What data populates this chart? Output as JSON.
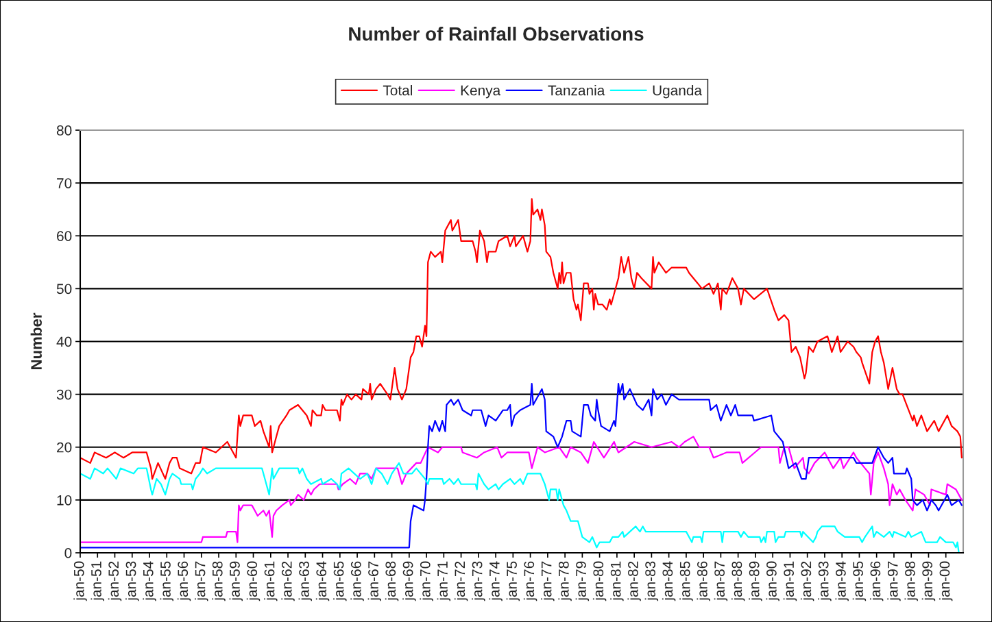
{
  "chart_data": {
    "type": "line",
    "title": "Number of Rainfall Observations",
    "ylabel": "Number",
    "xlim": [
      "1950-01",
      "2001-01"
    ],
    "ylim": [
      0,
      80
    ],
    "yticks": [
      0,
      10,
      20,
      30,
      40,
      50,
      60,
      70,
      80
    ],
    "xticks": [
      {
        "value": "1950-01",
        "label": "jan-50"
      },
      {
        "value": "1951-01",
        "label": "jan-51"
      },
      {
        "value": "1952-01",
        "label": "jan-52"
      },
      {
        "value": "1953-01",
        "label": "jan-53"
      },
      {
        "value": "1954-01",
        "label": "jan-54"
      },
      {
        "value": "1955-01",
        "label": "jan-55"
      },
      {
        "value": "1956-01",
        "label": "jan-56"
      },
      {
        "value": "1957-01",
        "label": "jan-57"
      },
      {
        "value": "1958-01",
        "label": "jan-58"
      },
      {
        "value": "1959-01",
        "label": "jan-59"
      },
      {
        "value": "1960-01",
        "label": "jan-60"
      },
      {
        "value": "1961-01",
        "label": "jan-61"
      },
      {
        "value": "1962-01",
        "label": "jan-62"
      },
      {
        "value": "1963-01",
        "label": "jan-63"
      },
      {
        "value": "1964-01",
        "label": "jan-64"
      },
      {
        "value": "1965-01",
        "label": "jan-65"
      },
      {
        "value": "1966-01",
        "label": "jan-66"
      },
      {
        "value": "1967-01",
        "label": "jan-67"
      },
      {
        "value": "1968-01",
        "label": "jan-68"
      },
      {
        "value": "1969-01",
        "label": "jan-69"
      },
      {
        "value": "1970-01",
        "label": "jan-70"
      },
      {
        "value": "1971-01",
        "label": "jan-71"
      },
      {
        "value": "1972-01",
        "label": "jan-72"
      },
      {
        "value": "1973-01",
        "label": "jan-73"
      },
      {
        "value": "1974-01",
        "label": "jan-74"
      },
      {
        "value": "1975-01",
        "label": "jan-75"
      },
      {
        "value": "1976-01",
        "label": "jan-76"
      },
      {
        "value": "1977-01",
        "label": "jan-77"
      },
      {
        "value": "1978-01",
        "label": "jan-78"
      },
      {
        "value": "1979-01",
        "label": "jan-79"
      },
      {
        "value": "1980-01",
        "label": "jan-80"
      },
      {
        "value": "1981-01",
        "label": "jan-81"
      },
      {
        "value": "1982-01",
        "label": "jan-82"
      },
      {
        "value": "1983-01",
        "label": "jan-83"
      },
      {
        "value": "1984-01",
        "label": "jan-84"
      },
      {
        "value": "1985-01",
        "label": "jan-85"
      },
      {
        "value": "1986-01",
        "label": "jan-86"
      },
      {
        "value": "1987-01",
        "label": "jan-87"
      },
      {
        "value": "1988-01",
        "label": "jan-88"
      },
      {
        "value": "1989-01",
        "label": "jan-89"
      },
      {
        "value": "1990-01",
        "label": "jan-90"
      },
      {
        "value": "1991-01",
        "label": "jan-91"
      },
      {
        "value": "1992-01",
        "label": "jan-92"
      },
      {
        "value": "1993-01",
        "label": "jan-93"
      },
      {
        "value": "1994-01",
        "label": "jan-94"
      },
      {
        "value": "1995-01",
        "label": "jan-95"
      },
      {
        "value": "1996-01",
        "label": "jan-96"
      },
      {
        "value": "1997-01",
        "label": "jan-97"
      },
      {
        "value": "1998-01",
        "label": "jan-98"
      },
      {
        "value": "1999-01",
        "label": "jan-99"
      },
      {
        "value": "2000-01",
        "label": "jan-00"
      }
    ],
    "grid": "y",
    "legend": "top",
    "series": [
      {
        "name": "Total",
        "color": "#ff0000",
        "x": [
          "1950-01",
          "1950-08",
          "1950-11",
          "1951-07",
          "1952-01",
          "1952-07",
          "1953-01",
          "1953-11",
          "1954-02",
          "1954-03",
          "1954-07",
          "1954-12",
          "1955-03",
          "1955-05",
          "1955-08",
          "1955-10",
          "1956-06",
          "1956-09",
          "1956-12",
          "1957-02",
          "1957-11",
          "1958-07",
          "1959-01",
          "1959-03",
          "1959-04",
          "1959-06",
          "1959-12",
          "1960-02",
          "1960-06",
          "1960-08",
          "1960-12",
          "1961-01",
          "1961-02",
          "1961-05",
          "1961-07",
          "1961-12",
          "1962-02",
          "1962-08",
          "1962-11",
          "1963-02",
          "1963-05",
          "1963-06",
          "1963-09",
          "1963-12",
          "1964-01",
          "1964-03",
          "1964-11",
          "1965-01",
          "1965-02",
          "1965-03",
          "1965-06",
          "1965-09",
          "1965-12",
          "1966-04",
          "1966-05",
          "1966-09",
          "1966-10",
          "1966-11",
          "1967-02",
          "1967-05",
          "1967-10",
          "1967-12",
          "1968-03",
          "1968-05",
          "1968-08",
          "1968-11",
          "1969-02",
          "1969-04",
          "1969-06",
          "1969-08",
          "1969-10",
          "1969-12",
          "1970-01",
          "1970-02",
          "1970-04",
          "1970-07",
          "1970-11",
          "1970-12",
          "1971-02",
          "1971-06",
          "1971-07",
          "1971-11",
          "1972-01",
          "1972-09",
          "1972-11",
          "1972-12",
          "1973-02",
          "1973-05",
          "1973-07",
          "1973-08",
          "1974-01",
          "1974-03",
          "1974-09",
          "1974-11",
          "1975-02",
          "1975-03",
          "1975-08",
          "1975-11",
          "1976-01",
          "1976-02",
          "1976-03",
          "1976-06",
          "1976-08",
          "1976-09",
          "1976-11",
          "1976-12",
          "1977-03",
          "1977-05",
          "1977-08",
          "1977-09",
          "1977-10",
          "1977-11",
          "1977-12",
          "1978-02",
          "1978-05",
          "1978-07",
          "1978-09",
          "1978-10",
          "1978-12",
          "1979-02",
          "1979-05",
          "1979-06",
          "1979-08",
          "1979-09",
          "1979-10",
          "1979-12",
          "1980-03",
          "1980-06",
          "1980-08",
          "1980-09",
          "1981-02",
          "1981-04",
          "1981-06",
          "1981-09",
          "1981-11",
          "1982-01",
          "1982-03",
          "1982-06",
          "1983-01",
          "1983-02",
          "1983-03",
          "1983-06",
          "1983-11",
          "1984-03",
          "1985-01",
          "1985-03",
          "1985-06",
          "1985-12",
          "1986-05",
          "1986-08",
          "1986-11",
          "1987-01",
          "1987-02",
          "1987-05",
          "1987-09",
          "1988-01",
          "1988-03",
          "1988-05",
          "1988-12",
          "1989-09",
          "1990-02",
          "1990-05",
          "1990-09",
          "1990-12",
          "1991-02",
          "1991-05",
          "1991-08",
          "1991-11",
          "1991-12",
          "1992-02",
          "1992-05",
          "1992-08",
          "1993-03",
          "1993-06",
          "1993-10",
          "1993-12",
          "1994-05",
          "1994-09",
          "1994-11",
          "1995-02",
          "1995-03",
          "1995-08",
          "1995-10",
          "1995-12",
          "1996-02",
          "1996-04",
          "1996-06",
          "1996-09",
          "1996-12",
          "1997-03",
          "1997-05",
          "1997-07",
          "1998-02",
          "1998-03",
          "1998-05",
          "1998-08",
          "1998-12",
          "1999-05",
          "1999-08",
          "2000-02",
          "2000-05",
          "2000-09",
          "2000-11",
          "2000-12"
        ],
        "values": [
          18,
          17,
          19,
          18,
          19,
          18,
          19,
          19,
          16,
          14,
          17,
          14,
          17,
          18,
          18,
          16,
          15,
          17,
          17,
          20,
          19,
          21,
          18,
          26,
          24,
          26,
          26,
          24,
          25,
          23,
          20,
          24,
          19,
          22,
          24,
          26,
          27,
          28,
          27,
          26,
          24,
          27,
          26,
          26,
          28,
          27,
          27,
          25,
          29,
          28,
          30,
          29,
          30,
          29,
          31,
          30,
          32,
          29,
          31,
          32,
          30,
          29,
          35,
          31,
          29,
          31,
          37,
          38,
          41,
          41,
          39,
          43,
          41,
          55,
          57,
          56,
          57,
          55,
          61,
          63,
          61,
          63,
          59,
          59,
          57,
          55,
          61,
          59,
          55,
          57,
          57,
          59,
          60,
          58,
          60,
          58,
          60,
          57,
          59,
          67,
          64,
          65,
          63,
          65,
          62,
          57,
          56,
          53,
          50,
          53,
          51,
          55,
          51,
          53,
          53,
          48,
          46,
          47,
          44,
          51,
          51,
          49,
          50,
          46,
          49,
          47,
          47,
          46,
          48,
          47,
          52,
          56,
          53,
          56,
          52,
          50,
          53,
          52,
          50,
          56,
          53,
          55,
          53,
          54,
          54,
          53,
          52,
          50,
          51,
          49,
          51,
          46,
          50,
          49,
          52,
          50,
          47,
          50,
          48,
          50,
          46,
          44,
          45,
          44,
          38,
          39,
          37,
          33,
          34,
          39,
          38,
          40,
          41,
          38,
          41,
          38,
          40,
          39,
          38,
          37,
          36,
          32,
          38,
          40,
          41,
          38,
          36,
          31,
          35,
          31,
          30,
          30,
          25,
          26,
          24,
          26,
          23,
          25,
          23,
          26,
          24,
          23,
          22,
          18
        ]
      },
      {
        "name": "Kenya",
        "color": "#ff00ff",
        "x": [
          "1950-01",
          "1957-01",
          "1957-02",
          "1958-06",
          "1958-07",
          "1959-01",
          "1959-02",
          "1959-03",
          "1959-04",
          "1959-06",
          "1959-12",
          "1960-02",
          "1960-04",
          "1960-08",
          "1960-10",
          "1960-12",
          "1961-02",
          "1961-03",
          "1961-05",
          "1961-09",
          "1962-02",
          "1962-03",
          "1962-06",
          "1962-08",
          "1962-12",
          "1963-03",
          "1963-05",
          "1963-07",
          "1963-11",
          "1964-11",
          "1964-12",
          "1965-03",
          "1965-08",
          "1965-12",
          "1966-03",
          "1966-08",
          "1966-11",
          "1967-02",
          "1968-05",
          "1968-08",
          "1968-11",
          "1969-06",
          "1969-09",
          "1970-02",
          "1970-09",
          "1970-12",
          "1972-01",
          "1972-02",
          "1972-12",
          "1973-05",
          "1974-02",
          "1974-05",
          "1974-09",
          "1975-12",
          "1976-02",
          "1976-06",
          "1976-11",
          "1977-09",
          "1978-02",
          "1978-05",
          "1978-12",
          "1979-05",
          "1979-09",
          "1980-04",
          "1980-11",
          "1981-02",
          "1982-01",
          "1983-01",
          "1984-03",
          "1984-08",
          "1984-12",
          "1985-06",
          "1985-10",
          "1986-05",
          "1986-08",
          "1987-05",
          "1988-02",
          "1988-04",
          "1989-05",
          "1990-05",
          "1990-06",
          "1990-09",
          "1990-12",
          "1991-04",
          "1991-10",
          "1991-11",
          "1992-02",
          "1992-06",
          "1993-01",
          "1993-07",
          "1993-12",
          "1994-02",
          "1994-09",
          "1994-11",
          "1995-05",
          "1995-08",
          "1995-09",
          "1995-11",
          "1996-02",
          "1996-06",
          "1996-09",
          "1996-10",
          "1996-12",
          "1997-03",
          "1997-05",
          "1997-09",
          "1998-02",
          "1998-04",
          "1998-10",
          "1999-02",
          "1999-03",
          "2000-01",
          "2000-02",
          "2000-08",
          "2000-12"
        ],
        "values": [
          2,
          2,
          3,
          3,
          4,
          4,
          2,
          9,
          8,
          9,
          9,
          8,
          7,
          8,
          7,
          8,
          3,
          7,
          8,
          9,
          10,
          9,
          10,
          11,
          10,
          12,
          11,
          12,
          13,
          13,
          12,
          13,
          14,
          13,
          15,
          15,
          14,
          16,
          16,
          13,
          15,
          17,
          17,
          20,
          19,
          20,
          20,
          19,
          18,
          19,
          20,
          18,
          19,
          19,
          16,
          20,
          19,
          20,
          18,
          20,
          19,
          17,
          21,
          18,
          21,
          19,
          21,
          20,
          21,
          20,
          21,
          22,
          20,
          20,
          18,
          19,
          19,
          17,
          20,
          20,
          17,
          20,
          20,
          16,
          18,
          16,
          15,
          17,
          19,
          16,
          18,
          16,
          19,
          18,
          16,
          15,
          11,
          17,
          19,
          16,
          13,
          9,
          13,
          11,
          12,
          10,
          8,
          12,
          11,
          9,
          12,
          11,
          13,
          12,
          10
        ]
      },
      {
        "name": "Tanzania",
        "color": "#0000ff",
        "x": [
          "1950-01",
          "1969-01",
          "1969-02",
          "1969-04",
          "1969-11",
          "1969-12",
          "1970-01",
          "1970-02",
          "1970-03",
          "1970-05",
          "1970-07",
          "1970-10",
          "1970-12",
          "1971-02",
          "1971-03",
          "1971-06",
          "1971-08",
          "1971-11",
          "1972-02",
          "1972-08",
          "1972-09",
          "1973-03",
          "1973-06",
          "1973-08",
          "1974-01",
          "1974-06",
          "1974-09",
          "1974-11",
          "1974-12",
          "1975-02",
          "1975-06",
          "1976-01",
          "1976-02",
          "1976-03",
          "1976-09",
          "1976-11",
          "1976-12",
          "1977-05",
          "1977-08",
          "1977-11",
          "1978-02",
          "1978-05",
          "1978-06",
          "1978-12",
          "1979-02",
          "1979-05",
          "1979-07",
          "1979-10",
          "1979-11",
          "1979-12",
          "1980-02",
          "1980-08",
          "1980-11",
          "1980-12",
          "1981-02",
          "1981-03",
          "1981-05",
          "1981-06",
          "1981-10",
          "1982-03",
          "1982-07",
          "1982-11",
          "1983-01",
          "1983-02",
          "1983-05",
          "1983-08",
          "1983-11",
          "1984-03",
          "1984-08",
          "1986-05",
          "1986-06",
          "1986-10",
          "1987-01",
          "1987-05",
          "1987-08",
          "1987-11",
          "1988-01",
          "1988-11",
          "1988-12",
          "1989-12",
          "1990-02",
          "1990-08",
          "1990-12",
          "1991-05",
          "1991-09",
          "1991-12",
          "1992-02",
          "1994-09",
          "1994-11",
          "1995-10",
          "1996-02",
          "1996-06",
          "1996-09",
          "1996-12",
          "1997-01",
          "1997-09",
          "1997-10",
          "1998-01",
          "1998-02",
          "1998-05",
          "1998-09",
          "1998-12",
          "1999-03",
          "1999-06",
          "1999-08",
          "2000-02",
          "2000-05",
          "2000-10",
          "2000-12"
        ],
        "values": [
          1,
          1,
          6,
          9,
          8,
          10,
          14,
          20,
          24,
          23,
          25,
          23,
          25,
          23,
          28,
          29,
          28,
          29,
          27,
          26,
          27,
          27,
          24,
          26,
          25,
          27,
          27,
          28,
          24,
          26,
          27,
          28,
          32,
          28,
          31,
          29,
          23,
          22,
          20,
          22,
          25,
          25,
          23,
          22,
          28,
          28,
          26,
          25,
          29,
          27,
          24,
          23,
          25,
          24,
          32,
          30,
          32,
          29,
          31,
          28,
          27,
          29,
          26,
          31,
          29,
          30,
          28,
          30,
          29,
          29,
          27,
          28,
          25,
          28,
          26,
          28,
          26,
          26,
          25,
          26,
          23,
          21,
          16,
          17,
          14,
          14,
          18,
          18,
          17,
          17,
          20,
          18,
          17,
          18,
          15,
          15,
          16,
          14,
          10,
          9,
          10,
          8,
          10,
          9,
          8,
          11,
          9,
          10,
          9
        ]
      },
      {
        "name": "Uganda",
        "color": "#00ffff",
        "x": [
          "1950-01",
          "1950-08",
          "1950-11",
          "1951-05",
          "1951-08",
          "1952-02",
          "1952-05",
          "1953-02",
          "1953-05",
          "1953-11",
          "1954-02",
          "1954-03",
          "1954-06",
          "1954-09",
          "1954-12",
          "1955-03",
          "1955-05",
          "1955-10",
          "1955-11",
          "1956-06",
          "1956-07",
          "1956-09",
          "1956-12",
          "1957-02",
          "1957-05",
          "1957-11",
          "1960-07",
          "1960-08",
          "1960-12",
          "1961-02",
          "1961-03",
          "1961-05",
          "1961-07",
          "1962-08",
          "1962-09",
          "1962-11",
          "1963-02",
          "1963-05",
          "1963-12",
          "1964-01",
          "1964-07",
          "1964-11",
          "1965-01",
          "1965-02",
          "1965-07",
          "1965-11",
          "1966-03",
          "1966-08",
          "1966-11",
          "1967-02",
          "1967-06",
          "1967-10",
          "1968-01",
          "1968-06",
          "1968-09",
          "1969-03",
          "1969-06",
          "1969-12",
          "1970-02",
          "1970-03",
          "1970-12",
          "1971-01",
          "1971-05",
          "1971-08",
          "1971-11",
          "1972-01",
          "1972-11",
          "1972-12",
          "1973-01",
          "1973-05",
          "1973-08",
          "1974-01",
          "1974-03",
          "1974-06",
          "1974-11",
          "1975-02",
          "1975-06",
          "1975-08",
          "1975-11",
          "1976-08",
          "1976-11",
          "1977-02",
          "1977-03",
          "1977-07",
          "1977-08",
          "1977-09",
          "1977-12",
          "1978-02",
          "1978-05",
          "1978-10",
          "1979-01",
          "1979-06",
          "1979-08",
          "1979-11",
          "1980-01",
          "1980-08",
          "1980-10",
          "1981-02",
          "1981-05",
          "1981-06",
          "1981-10",
          "1982-02",
          "1982-05",
          "1982-07",
          "1982-09",
          "1985-01",
          "1985-05",
          "1985-06",
          "1985-11",
          "1985-12",
          "1986-01",
          "1987-01",
          "1987-02",
          "1987-03",
          "1988-01",
          "1988-03",
          "1988-05",
          "1988-08",
          "1989-04",
          "1989-05",
          "1989-07",
          "1989-08",
          "1989-09",
          "1990-02",
          "1990-03",
          "1990-05",
          "1990-09",
          "1990-10",
          "1991-08",
          "1991-09",
          "1991-10",
          "1992-05",
          "1992-07",
          "1992-08",
          "1992-11",
          "1993-08",
          "1993-10",
          "1994-03",
          "1995-01",
          "1995-03",
          "1995-05",
          "1995-10",
          "1995-11",
          "1996-01",
          "1996-06",
          "1996-10",
          "1996-12",
          "1997-01",
          "1997-09",
          "1997-11",
          "1998-01",
          "1998-08",
          "1998-11",
          "1999-07",
          "1999-09",
          "2000-01",
          "2000-06",
          "2000-08",
          "2000-09",
          "2000-10",
          "2000-12"
        ],
        "values": [
          15,
          14,
          16,
          15,
          16,
          14,
          16,
          15,
          16,
          16,
          12,
          11,
          14,
          13,
          11,
          14,
          15,
          14,
          13,
          13,
          12,
          14,
          15,
          16,
          15,
          16,
          16,
          15,
          11,
          16,
          14,
          15,
          16,
          16,
          15,
          16,
          14,
          13,
          14,
          13,
          14,
          13,
          12,
          15,
          16,
          15,
          14,
          15,
          13,
          16,
          15,
          13,
          15,
          17,
          15,
          15,
          16,
          14,
          13,
          14,
          14,
          13,
          14,
          13,
          14,
          13,
          13,
          12,
          15,
          13,
          12,
          13,
          12,
          13,
          14,
          13,
          14,
          13,
          15,
          15,
          13,
          10,
          12,
          12,
          10,
          12,
          9,
          8,
          6,
          6,
          3,
          2,
          3,
          1,
          2,
          2,
          3,
          3,
          4,
          3,
          4,
          5,
          4,
          5,
          4,
          4,
          2,
          3,
          3,
          2,
          4,
          4,
          2,
          4,
          4,
          3,
          4,
          3,
          3,
          2,
          3,
          2,
          4,
          4,
          2,
          3,
          3,
          4,
          4,
          3,
          4,
          2,
          3,
          4,
          5,
          5,
          4,
          3,
          3,
          2,
          3,
          5,
          3,
          4,
          3,
          4,
          3,
          4,
          3,
          4,
          3,
          4,
          2,
          2,
          3,
          2,
          2,
          1,
          2,
          0,
          0
        ]
      }
    ]
  }
}
